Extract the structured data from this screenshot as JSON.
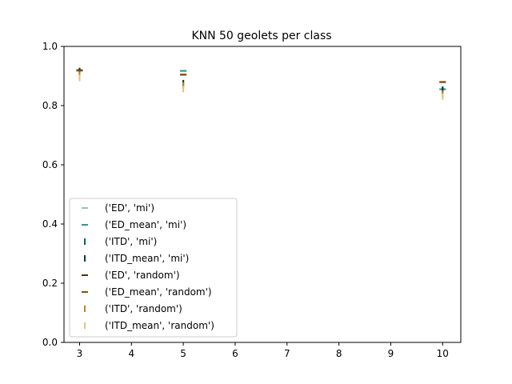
{
  "chart_data": {
    "type": "scatter",
    "title": "KNN 50 geolets per class",
    "xlabel": "",
    "ylabel": "",
    "xlim": [
      2.7,
      10.35
    ],
    "ylim": [
      0.0,
      1.0
    ],
    "xticks": [
      3,
      4,
      5,
      6,
      7,
      8,
      9,
      10
    ],
    "yticks": [
      0.0,
      0.2,
      0.4,
      0.6,
      0.8,
      1.0
    ],
    "xtick_labels": [
      "3",
      "4",
      "5",
      "6",
      "7",
      "8",
      "9",
      "10"
    ],
    "ytick_labels": [
      "0.0",
      "0.2",
      "0.4",
      "0.6",
      "0.8",
      "1.0"
    ],
    "grid": false,
    "legend_position": "lower-left",
    "series": [
      {
        "name": "('ED', 'mi')",
        "marker": "hline",
        "color": "#80cdc1",
        "x": [
          3,
          5,
          10
        ],
        "y": [
          0.921,
          0.918,
          0.856
        ]
      },
      {
        "name": "('ED_mean', 'mi')",
        "marker": "hline",
        "color": "#35978f",
        "x": [
          3,
          5,
          10
        ],
        "y": [
          0.92,
          0.917,
          0.855
        ]
      },
      {
        "name": "('ITD', 'mi')",
        "marker": "vline",
        "color": "#01665e",
        "x": [
          3,
          5,
          10
        ],
        "y": [
          0.917,
          0.876,
          0.854
        ]
      },
      {
        "name": "('ITD_mean', 'mi')",
        "marker": "vline",
        "color": "#003c30",
        "x": [
          3,
          5,
          10
        ],
        "y": [
          0.916,
          0.875,
          0.853
        ]
      },
      {
        "name": "('ED', 'random')",
        "marker": "hline",
        "color": "#543005",
        "x": [
          3,
          5,
          10
        ],
        "y": [
          0.919,
          0.905,
          0.88
        ]
      },
      {
        "name": "('ED_mean', 'random')",
        "marker": "hline",
        "color": "#8c510a",
        "x": [
          3,
          5,
          10
        ],
        "y": [
          0.918,
          0.904,
          0.879
        ]
      },
      {
        "name": "('ITD', 'random')",
        "marker": "vline",
        "color": "#bf812d",
        "x": [
          3,
          5,
          10
        ],
        "y": [
          0.904,
          0.868,
          0.84
        ]
      },
      {
        "name": "('ITD_mean', 'random')",
        "marker": "vline",
        "color": "#dfc27d",
        "x": [
          3,
          5,
          10
        ],
        "y": [
          0.893,
          0.856,
          0.83
        ]
      }
    ]
  }
}
